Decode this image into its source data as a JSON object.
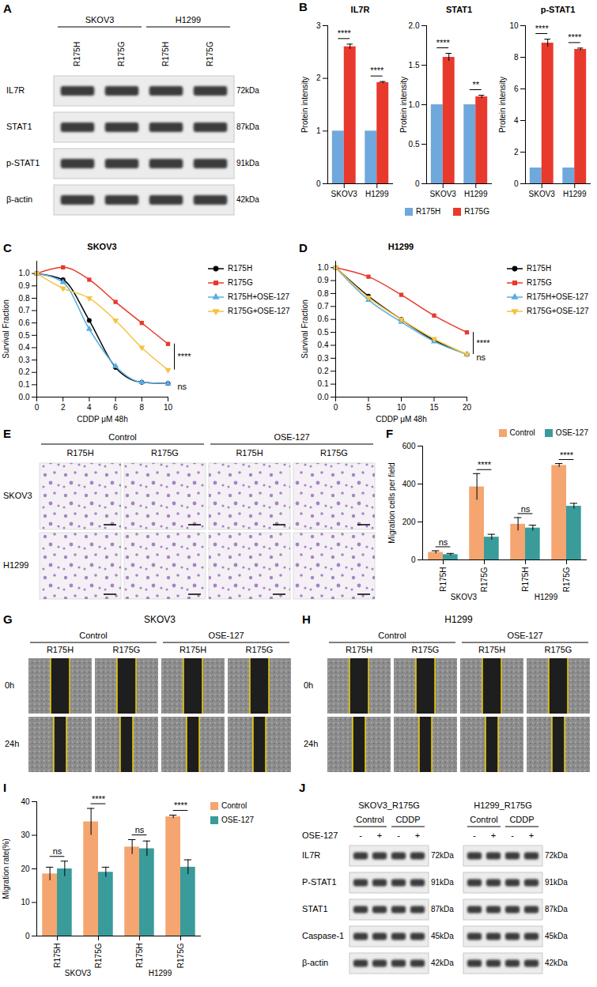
{
  "chart_data": [
    {
      "panel": "B",
      "type": "bar",
      "title": "IL7R",
      "y_label": "Protein intensity",
      "categories": [
        "SKOV3",
        "H1299"
      ],
      "series": [
        {
          "name": "R175H",
          "color": "#6fa8dc",
          "values": [
            1,
            1
          ],
          "errors": [
            0,
            0
          ]
        },
        {
          "name": "R175G",
          "color": "#e8392d",
          "values": [
            2.6,
            1.92
          ],
          "errors": [
            0.05,
            0.02
          ]
        }
      ],
      "ylim": [
        0,
        3
      ],
      "yticks": [
        0,
        1,
        2,
        3
      ],
      "annotations": [
        "****",
        "****"
      ]
    },
    {
      "type": "bar",
      "title": "STAT1",
      "y_label": "Protein intensity",
      "categories": [
        "SKOV3",
        "H1299"
      ],
      "series": [
        {
          "name": "R175H",
          "color": "#6fa8dc",
          "values": [
            1,
            1
          ],
          "errors": [
            0,
            0
          ]
        },
        {
          "name": "R175G",
          "color": "#e8392d",
          "values": [
            1.6,
            1.1
          ],
          "errors": [
            0.05,
            0.02
          ]
        }
      ],
      "ylim": [
        0,
        2
      ],
      "yticks": [
        0,
        0.5,
        {
          "value": 1,
          "label": "1.0"
        },
        1.5,
        {
          "value": 2,
          "label": "2.0"
        }
      ],
      "annotations": [
        "****",
        "**"
      ]
    },
    {
      "type": "bar",
      "title": "p-STAT1",
      "y_label": "Protein intensity",
      "categories": [
        "SKOV3",
        "H1299"
      ],
      "series": [
        {
          "name": "R175H",
          "color": "#6fa8dc",
          "values": [
            1,
            1
          ],
          "errors": [
            0,
            0
          ]
        },
        {
          "name": "R175G",
          "color": "#e8392d",
          "values": [
            8.9,
            8.5
          ],
          "errors": [
            0.25,
            0.08
          ]
        }
      ],
      "ylim": [
        0,
        10
      ],
      "yticks": [
        0,
        2,
        4,
        6,
        8,
        10
      ],
      "annotations": [
        "****",
        "****"
      ],
      "legend": "bottom"
    },
    {
      "panel": "C",
      "type": "line",
      "title": "SKOV3",
      "x_label": "CDDP μM 48h",
      "y_label": "Survival Fraction",
      "x": [
        0,
        2,
        4,
        6,
        8,
        10
      ],
      "series": [
        {
          "name": "R175H",
          "color": "#000000",
          "marker": "circle",
          "values": [
            1.0,
            0.95,
            0.62,
            0.24,
            0.12,
            0.11
          ]
        },
        {
          "name": "R175G",
          "color": "#e8392d",
          "marker": "square",
          "values": [
            1.0,
            1.05,
            0.95,
            0.77,
            0.6,
            0.43
          ]
        },
        {
          "name": "R175H+OSE-127",
          "color": "#5aaee0",
          "marker": "triangle-up",
          "values": [
            1.0,
            0.93,
            0.55,
            0.25,
            0.12,
            0.11
          ]
        },
        {
          "name": "R175G+OSE-127",
          "color": "#f5c242",
          "marker": "triangle-down",
          "values": [
            1.0,
            0.88,
            0.8,
            0.62,
            0.4,
            0.22
          ]
        }
      ],
      "xlim": [
        0,
        10
      ],
      "xticks": [
        0,
        2,
        4,
        6,
        8,
        10
      ],
      "ylim": [
        0,
        1.1
      ],
      "yticks": [
        {
          "value": 0,
          "label": "0.0"
        },
        0.1,
        0.2,
        0.3,
        0.4,
        0.5,
        0.6,
        0.7,
        0.8,
        0.9,
        {
          "value": 1,
          "label": "1.0"
        }
      ],
      "annotations": [
        {
          "text": "****",
          "between": [
            "R175G",
            "R175G+OSE-127"
          ]
        },
        {
          "text": "ns",
          "between": [
            "R175H",
            "R175H+OSE-127"
          ]
        }
      ],
      "legend": "right"
    },
    {
      "panel": "D",
      "type": "line",
      "title": "H1299",
      "x_label": "CDDP μM 48h",
      "y_label": "Survival Fraction",
      "x": [
        0,
        5,
        10,
        15,
        20
      ],
      "series": [
        {
          "name": "R175H",
          "color": "#000000",
          "marker": "circle",
          "values": [
            1.0,
            0.78,
            0.6,
            0.44,
            0.33
          ]
        },
        {
          "name": "R175G",
          "color": "#e8392d",
          "marker": "square",
          "values": [
            1.0,
            0.93,
            0.79,
            0.63,
            0.5
          ]
        },
        {
          "name": "R175H+OSE-127",
          "color": "#5aaee0",
          "marker": "triangle-up",
          "values": [
            1.0,
            0.75,
            0.58,
            0.43,
            0.33
          ]
        },
        {
          "name": "R175G+OSE-127",
          "color": "#f5c242",
          "marker": "triangle-down",
          "values": [
            1.0,
            0.77,
            0.6,
            0.45,
            0.33
          ]
        }
      ],
      "xlim": [
        0,
        20
      ],
      "xticks": [
        0,
        5,
        10,
        15,
        20
      ],
      "ylim": [
        0,
        1.05
      ],
      "yticks": [
        {
          "value": 0,
          "label": "0.0"
        },
        0.1,
        0.2,
        0.3,
        0.4,
        0.5,
        0.6,
        0.7,
        0.8,
        0.9,
        {
          "value": 1,
          "label": "1.0"
        }
      ],
      "annotations": [
        {
          "text": "****",
          "between": [
            "R175G",
            "R175G+OSE-127"
          ]
        },
        {
          "text": "ns",
          "between": [
            "R175H",
            "R175H+OSE-127"
          ]
        }
      ],
      "legend": "right"
    },
    {
      "panel": "F",
      "type": "bar",
      "y_label": "Migration cells per field",
      "categories": [
        "R175H",
        "R175G",
        "R175H",
        "R175G"
      ],
      "category_groups": [
        "SKOV3",
        "SKOV3",
        "H1299",
        "H1299"
      ],
      "series": [
        {
          "name": "Control",
          "color": "#f4a570",
          "values": [
            40,
            385,
            188,
            498
          ],
          "errors": [
            8,
            70,
            35,
            10
          ]
        },
        {
          "name": "OSE-127",
          "color": "#3a9b9b",
          "values": [
            28,
            120,
            168,
            283
          ],
          "errors": [
            6,
            15,
            15,
            15
          ]
        }
      ],
      "ylim": [
        0,
        600
      ],
      "yticks": [
        0,
        200,
        400,
        600
      ],
      "annotations": [
        "ns",
        "****",
        "ns",
        "****"
      ],
      "legend": "top-right"
    },
    {
      "panel": "I",
      "type": "bar",
      "y_label": "Migration rate(%)",
      "categories": [
        "R175H",
        "R175G",
        "R175H",
        "R175G"
      ],
      "category_groups": [
        "SKOV3",
        "SKOV3",
        "H1299",
        "H1299"
      ],
      "series": [
        {
          "name": "Control",
          "color": "#f4a570",
          "values": [
            18.5,
            34,
            26.5,
            35.5
          ],
          "errors": [
            2,
            4,
            2.2,
            0.5
          ]
        },
        {
          "name": "OSE-127",
          "color": "#3a9b9b",
          "values": [
            20,
            19,
            26,
            20.5
          ],
          "errors": [
            2.3,
            1.5,
            2.3,
            2.2
          ]
        }
      ],
      "ylim": [
        0,
        40
      ],
      "yticks": [
        0,
        10,
        20,
        30,
        40
      ],
      "annotations": [
        "ns",
        "****",
        "ns",
        "****"
      ],
      "legend": "right"
    }
  ],
  "blots": [
    {
      "panel": "A",
      "groups": [
        {
          "label": "SKOV3",
          "lanes": [
            "R175H",
            "R175G"
          ]
        },
        {
          "label": "H1299",
          "lanes": [
            "R175H",
            "R175G"
          ]
        }
      ],
      "rows": [
        {
          "label": "IL7R",
          "size": "72kDa"
        },
        {
          "label": "STAT1",
          "size": "87kDa"
        },
        {
          "label": "p-STAT1",
          "size": "91kDa"
        },
        {
          "label": "β-actin",
          "size": "42kDa"
        }
      ]
    },
    {
      "panel": "J",
      "lane_label": "OSE-127",
      "rows": [
        {
          "label": "IL7R",
          "size": "72kDa"
        },
        {
          "label": "P-STAT1",
          "size": "91kDa"
        },
        {
          "label": "STAT1",
          "size": "87kDa"
        },
        {
          "label": "Caspase-1",
          "size": "45kDa"
        },
        {
          "label": "β-actin",
          "size": "42kDa"
        }
      ],
      "blots": [
        {
          "title": "SKOV3_R175G",
          "groups": [
            {
              "label": "Control",
              "lanes": [
                "-",
                "+"
              ]
            },
            {
              "label": "CDDP",
              "lanes": [
                "-",
                "+"
              ]
            }
          ]
        },
        {
          "title": "H1299_R175G",
          "groups": [
            {
              "label": "Control",
              "lanes": [
                "-",
                "+"
              ]
            },
            {
              "label": "CDDP",
              "lanes": [
                "-",
                "+"
              ]
            }
          ]
        }
      ]
    }
  ],
  "images": [
    {
      "panel": "E",
      "groups": [
        {
          "label": "Control",
          "columns": [
            "R175H",
            "R175G"
          ]
        },
        {
          "label": "OSE-127",
          "columns": [
            "R175H",
            "R175G"
          ]
        }
      ],
      "rows": [
        "SKOV3",
        "H1299"
      ]
    },
    {
      "panel": "G",
      "title": "SKOV3",
      "groups": [
        {
          "label": "Control",
          "columns": [
            "R175H",
            "R175G"
          ]
        },
        {
          "label": "OSE-127",
          "columns": [
            "R175H",
            "R175G"
          ]
        }
      ],
      "rows": [
        "0h",
        "24h"
      ]
    },
    {
      "panel": "H",
      "title": "H1299",
      "groups": [
        {
          "label": "Control",
          "columns": [
            "R175H",
            "R175G"
          ]
        },
        {
          "label": "OSE-127",
          "columns": [
            "R175H",
            "R175G"
          ]
        }
      ],
      "rows": [
        "0h",
        "24h"
      ]
    }
  ]
}
